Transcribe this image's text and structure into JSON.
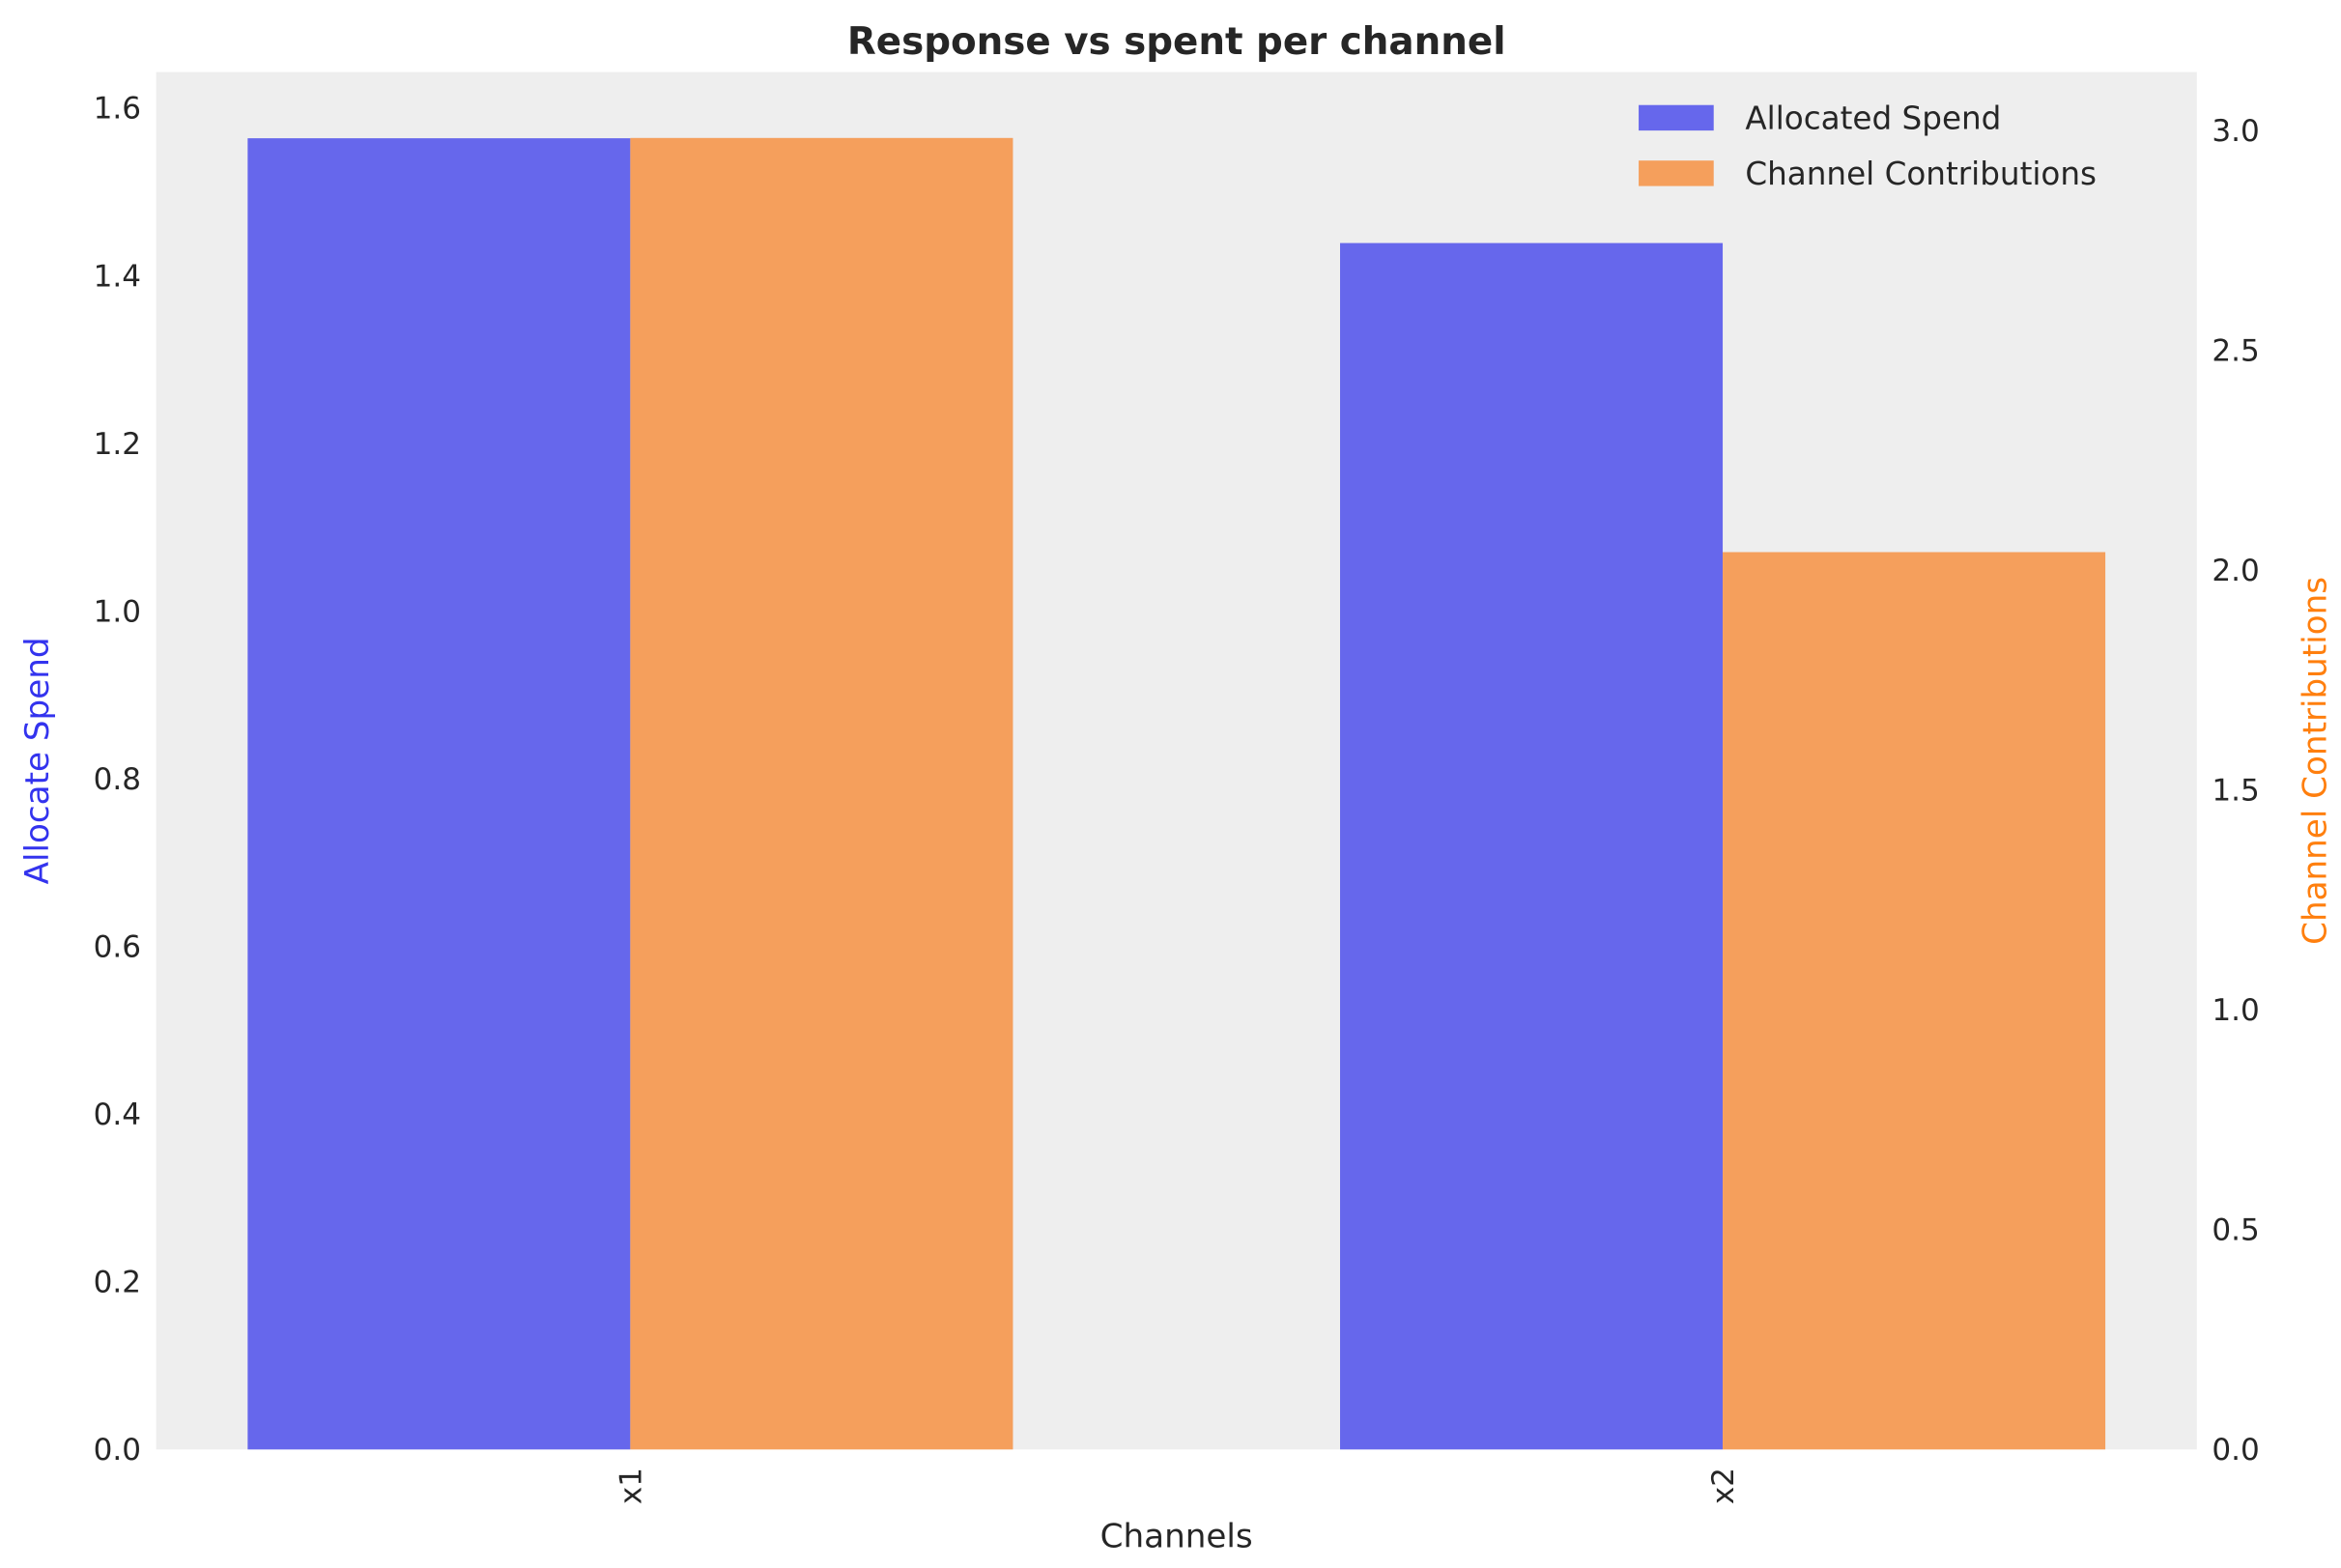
{
  "chart_data": {
    "type": "bar",
    "title": "Response vs spent per channel",
    "xlabel": "Channels",
    "ylabel": "Allocate Spend",
    "ylabel_right": "Channel Contributions",
    "categories": [
      "x1",
      "x2"
    ],
    "series": [
      {
        "name": "Allocated Spend",
        "axis": "left",
        "color": "#6667ec",
        "values": [
          1.564,
          1.439
        ]
      },
      {
        "name": "Channel Contributions",
        "axis": "right",
        "color": "#f59f5c",
        "values": [
          2.983,
          2.041
        ]
      }
    ],
    "ylim": [
      0,
      1.643
    ],
    "ylim_right": [
      0,
      3.133
    ],
    "yticks": [
      "0.0",
      "0.2",
      "0.4",
      "0.6",
      "0.8",
      "1.0",
      "1.2",
      "1.4",
      "1.6"
    ],
    "yticks_right": [
      "0.0",
      "0.5",
      "1.0",
      "1.5",
      "2.0",
      "2.5",
      "3.0"
    ],
    "ylabel_color": "#3333ee",
    "ylabel_right_color": "#ff7f0e",
    "background": "#eeeeee",
    "grid": false,
    "legend_placement": "top-right"
  }
}
